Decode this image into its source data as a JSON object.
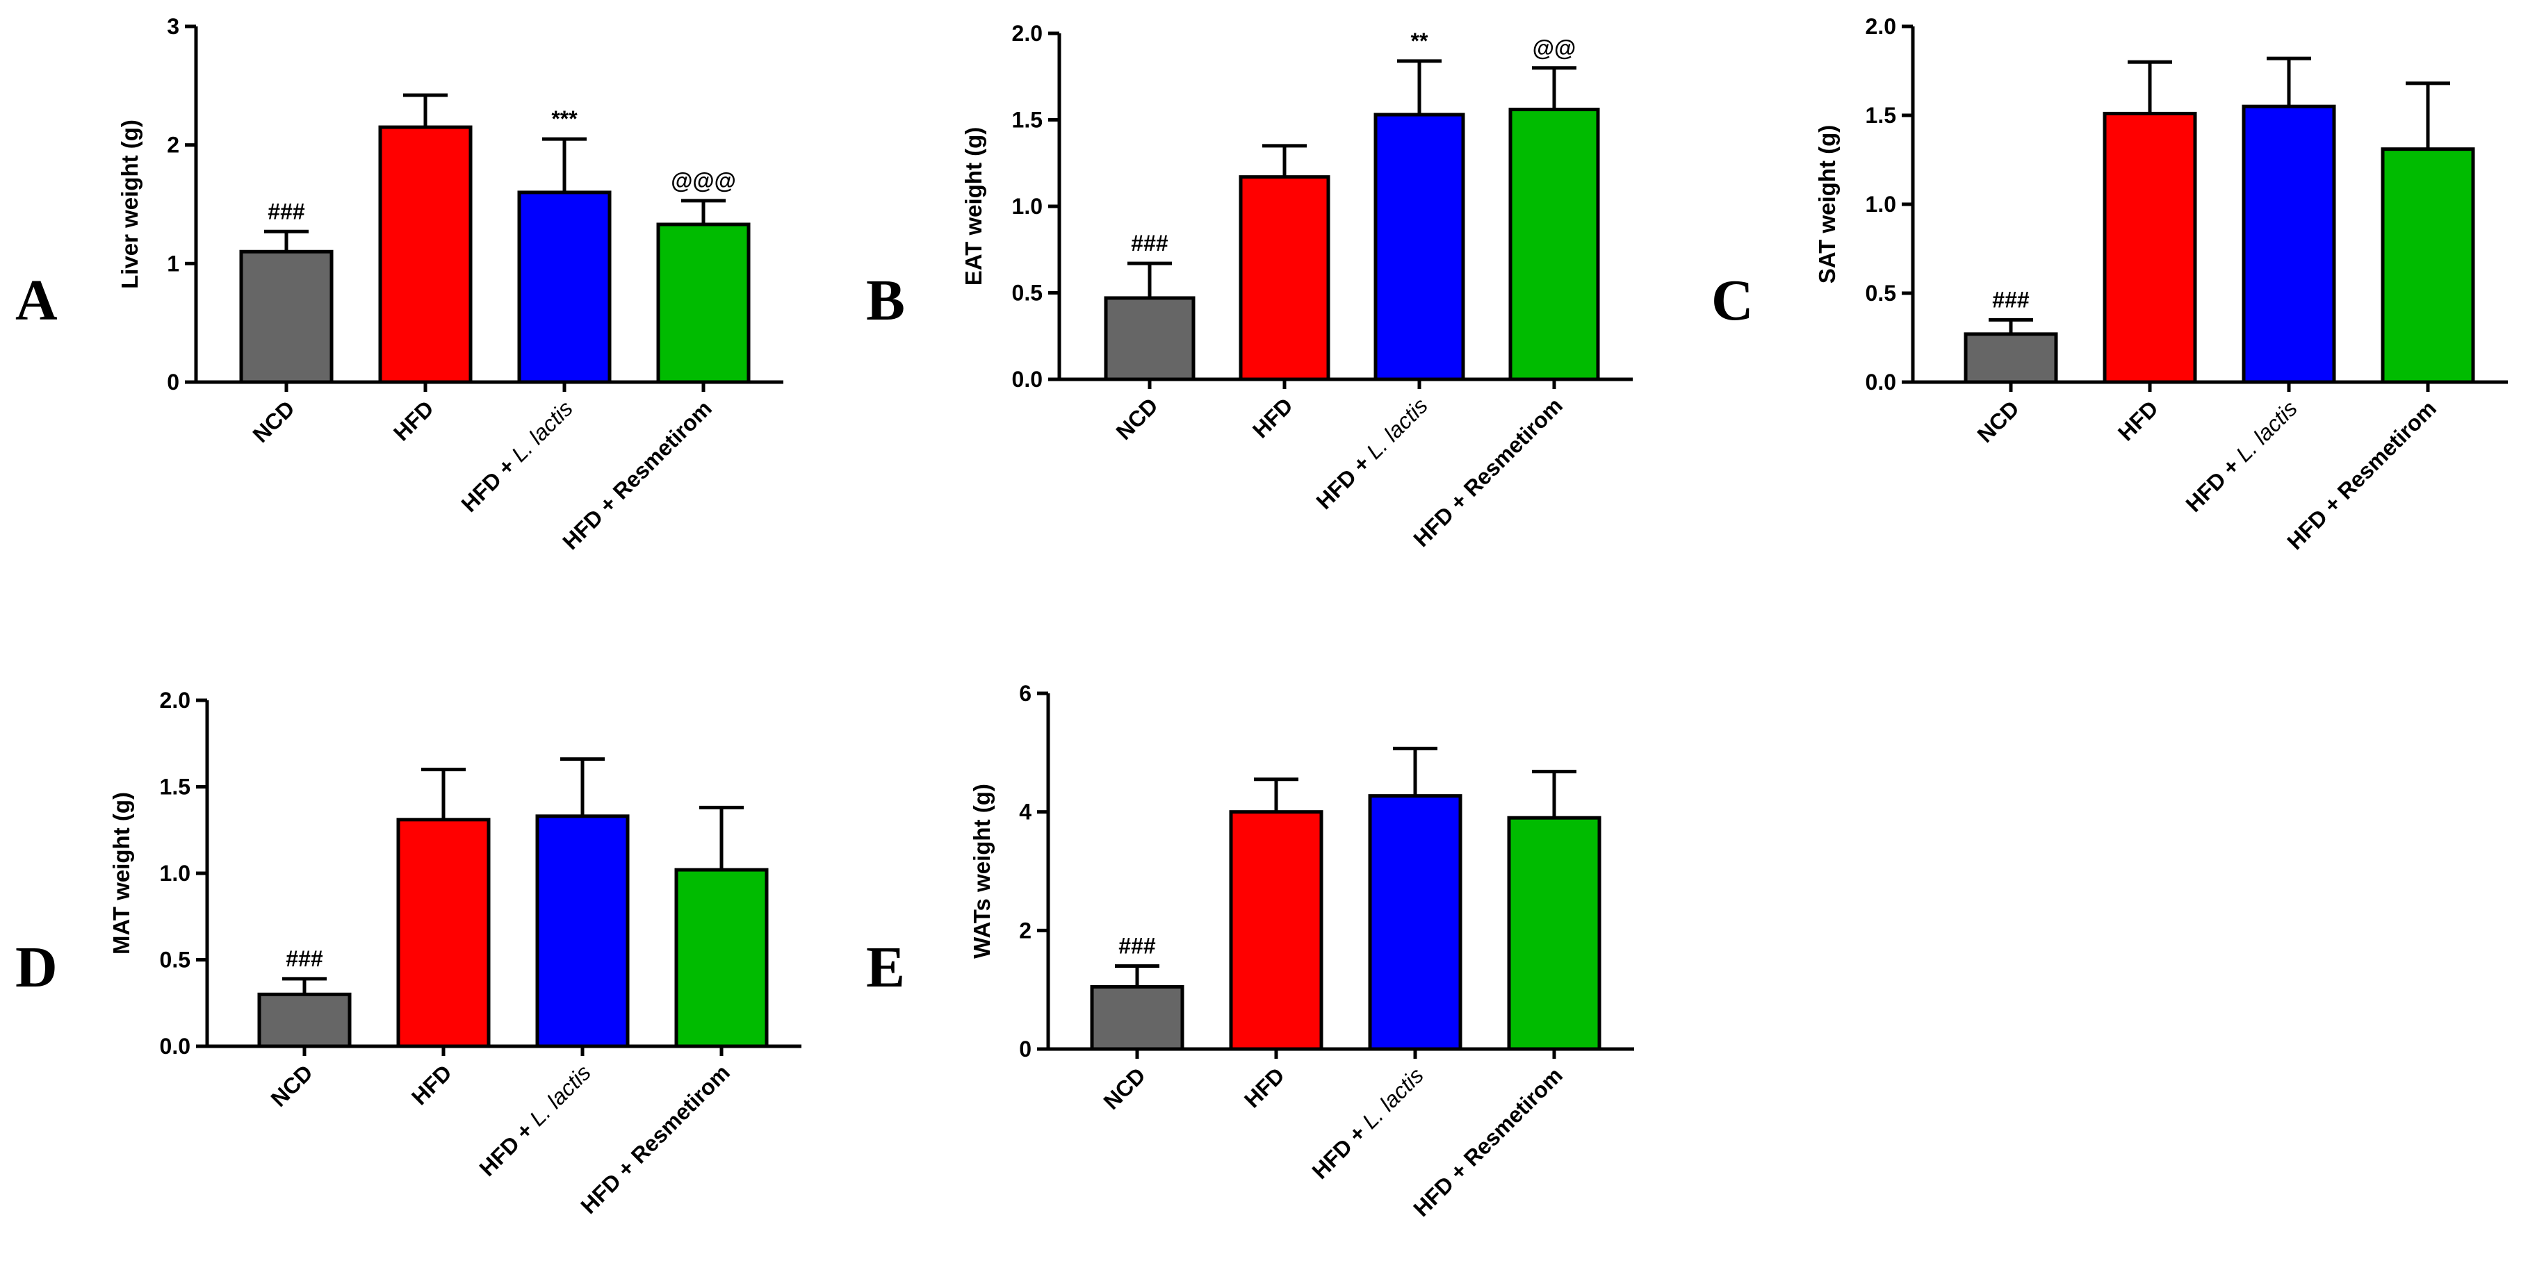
{
  "chart_data": [
    {
      "panel": "A",
      "type": "bar",
      "ylabel": "Liver weight (g)",
      "ylim": [
        0,
        3
      ],
      "yticks": [
        "0",
        "1",
        "2",
        "3"
      ],
      "categories": [
        "NCD",
        "HFD",
        "HFD + L. lactis",
        "HFD + Resmetirom"
      ],
      "values": [
        1.1,
        2.15,
        1.6,
        1.33
      ],
      "errors": [
        0.17,
        0.27,
        0.45,
        0.2
      ],
      "annotations": [
        "###",
        "",
        "***",
        "@@@"
      ],
      "colors": [
        "#666666",
        "#ff0000",
        "#0000ff",
        "#00bb00"
      ]
    },
    {
      "panel": "B",
      "type": "bar",
      "ylabel": "EAT weight (g)",
      "ylim": [
        0,
        2
      ],
      "yticks": [
        "0.0",
        "0.5",
        "1.0",
        "1.5",
        "2.0"
      ],
      "categories": [
        "NCD",
        "HFD",
        "HFD + L. lactis",
        "HFD + Resmetirom"
      ],
      "values": [
        0.47,
        1.17,
        1.53,
        1.56
      ],
      "errors": [
        0.2,
        0.18,
        0.31,
        0.24
      ],
      "annotations": [
        "###",
        "",
        "**",
        "@@"
      ],
      "colors": [
        "#666666",
        "#ff0000",
        "#0000ff",
        "#00bb00"
      ]
    },
    {
      "panel": "C",
      "type": "bar",
      "ylabel": "SAT weight (g)",
      "ylim": [
        0,
        2
      ],
      "yticks": [
        "0.0",
        "0.5",
        "1.0",
        "1.5",
        "2.0"
      ],
      "categories": [
        "NCD",
        "HFD",
        "HFD + L. lactis",
        "HFD + Resmetirom"
      ],
      "values": [
        0.27,
        1.51,
        1.55,
        1.31
      ],
      "errors": [
        0.08,
        0.29,
        0.27,
        0.37
      ],
      "annotations": [
        "###",
        "",
        "",
        ""
      ],
      "colors": [
        "#666666",
        "#ff0000",
        "#0000ff",
        "#00bb00"
      ]
    },
    {
      "panel": "D",
      "type": "bar",
      "ylabel": "MAT weight (g)",
      "ylim": [
        0,
        2
      ],
      "yticks": [
        "0.0",
        "0.5",
        "1.0",
        "1.5",
        "2.0"
      ],
      "categories": [
        "NCD",
        "HFD",
        "HFD + L. lactis",
        "HFD + Resmetirom"
      ],
      "values": [
        0.3,
        1.31,
        1.33,
        1.02
      ],
      "errors": [
        0.09,
        0.29,
        0.33,
        0.36
      ],
      "annotations": [
        "###",
        "",
        "",
        ""
      ],
      "colors": [
        "#666666",
        "#ff0000",
        "#0000ff",
        "#00bb00"
      ]
    },
    {
      "panel": "E",
      "type": "bar",
      "ylabel": "WATs weight (g)",
      "ylim": [
        0,
        6
      ],
      "yticks": [
        "0",
        "2",
        "4",
        "6"
      ],
      "categories": [
        "NCD",
        "HFD",
        "HFD + L. lactis",
        "HFD + Resmetirom"
      ],
      "values": [
        1.05,
        4.0,
        4.27,
        3.9
      ],
      "errors": [
        0.35,
        0.55,
        0.8,
        0.78
      ],
      "annotations": [
        "###",
        "",
        "",
        ""
      ],
      "colors": [
        "#666666",
        "#ff0000",
        "#0000ff",
        "#00bb00"
      ]
    }
  ],
  "category_parts": [
    [
      {
        "t": "NCD",
        "i": false
      }
    ],
    [
      {
        "t": "HFD",
        "i": false
      }
    ],
    [
      {
        "t": "HFD + ",
        "i": false
      },
      {
        "t": "L. lactis",
        "i": true
      }
    ],
    [
      {
        "t": "HFD + Resmetirom",
        "i": false
      }
    ]
  ]
}
